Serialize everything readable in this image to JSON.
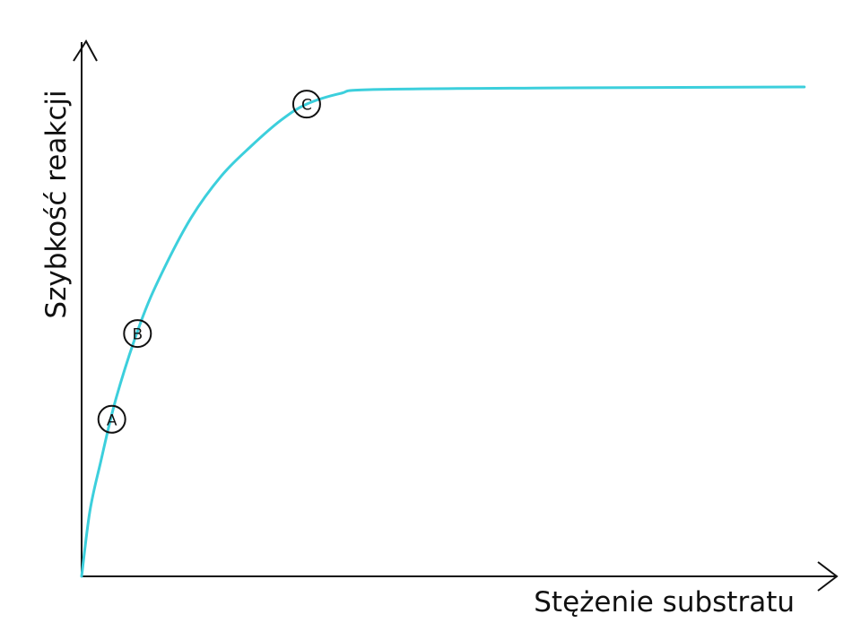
{
  "chart_data": {
    "type": "line",
    "title": "",
    "xlabel": "Stężenie substratu",
    "ylabel": "Szybkość reakcji",
    "xlim": [
      0,
      100
    ],
    "ylim": [
      0,
      100
    ],
    "grid": false,
    "ticks": false,
    "series": [
      {
        "color": "#3ccfdc",
        "x": [
          0,
          1.1,
          2.5,
          4.6,
          7.8,
          10.6,
          14.5,
          18.5,
          22.4,
          26.4,
          29.8,
          34.3,
          38.2,
          60,
          95.7
        ],
        "y": [
          0,
          12.2,
          21.2,
          33.4,
          47.3,
          56.5,
          66.9,
          74.7,
          80.2,
          85.1,
          88.1,
          90.1,
          90.8,
          91.1,
          91.3
        ]
      }
    ],
    "annotations": [
      {
        "label": "A",
        "x": 4.0,
        "y": 29.3
      },
      {
        "label": "B",
        "x": 7.4,
        "y": 45.3
      },
      {
        "label": "C",
        "x": 29.8,
        "y": 88.1
      }
    ]
  }
}
